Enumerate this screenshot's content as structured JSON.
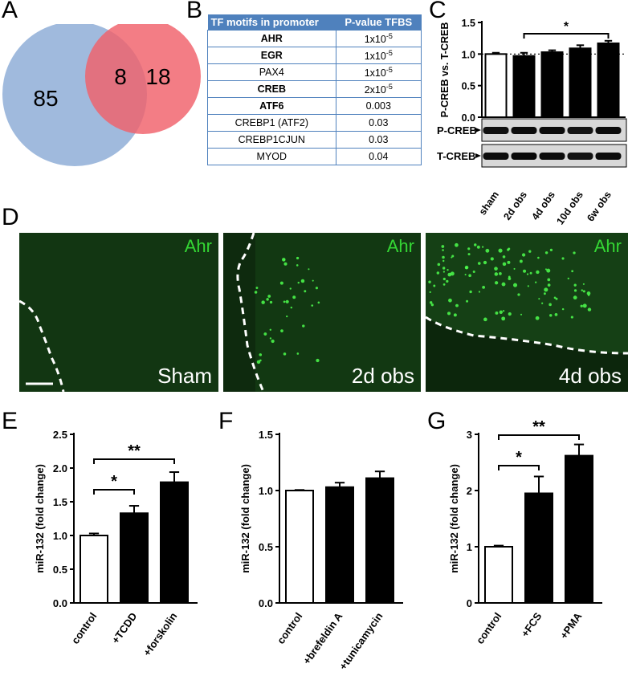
{
  "panels": {
    "A": "A",
    "B": "B",
    "C": "C",
    "D": "D",
    "E": "E",
    "F": "F",
    "G": "G"
  },
  "venn": {
    "left_only": "85",
    "overlap": "8",
    "right_only": "18",
    "colors": {
      "left": "#9bb6db",
      "right": "#f0606a"
    }
  },
  "tf_table": {
    "headers": [
      "TF motifs in promoter",
      "P-value TFBS"
    ],
    "rows": [
      {
        "motif": "AHR",
        "p": "1x10",
        "exp": "-5",
        "bold": true
      },
      {
        "motif": "EGR",
        "p": "1x10",
        "exp": "-5",
        "bold": true
      },
      {
        "motif": "PAX4",
        "p": "1x10",
        "exp": "-5",
        "bold": false
      },
      {
        "motif": "CREB",
        "p": "2x10",
        "exp": "-5",
        "bold": true
      },
      {
        "motif": "ATF6",
        "p": "0.003",
        "exp": "",
        "bold": true
      },
      {
        "motif": "CREBP1 (ATF2)",
        "p": "0.03",
        "exp": "",
        "bold": false
      },
      {
        "motif": "CREBP1CJUN",
        "p": "0.03",
        "exp": "",
        "bold": false
      },
      {
        "motif": "MYOD",
        "p": "0.04",
        "exp": "",
        "bold": false
      }
    ]
  },
  "western": {
    "labels": [
      "P-CREB",
      "T-CREB"
    ]
  },
  "micrographs": [
    {
      "marker": "Ahr",
      "condition": "Sham"
    },
    {
      "marker": "Ahr",
      "condition": "2d obs"
    },
    {
      "marker": "Ahr",
      "condition": "4d obs"
    }
  ],
  "chart_data": [
    {
      "panel": "C",
      "type": "bar",
      "ylabel": "P-CREB vs. T-CREB",
      "categories": [
        "sham",
        "2d obs",
        "4d obs",
        "10d obs",
        "6w obs"
      ],
      "values": [
        1.0,
        0.97,
        1.03,
        1.09,
        1.17
      ],
      "errors": [
        0.02,
        0.05,
        0.03,
        0.05,
        0.04
      ],
      "fills": [
        "#ffffff",
        "#000000",
        "#000000",
        "#000000",
        "#000000"
      ],
      "ylim": [
        0,
        1.5
      ],
      "yticks": [
        "0.0",
        "0.5",
        "1.0",
        "1.5"
      ],
      "reference_line": 1.0,
      "significance": [
        {
          "from": 1,
          "to": 4,
          "label": "*"
        }
      ]
    },
    {
      "panel": "E",
      "type": "bar",
      "ylabel": "miR-132 (fold change)",
      "categories": [
        "control",
        "+TCDD",
        "+forskolin"
      ],
      "values": [
        1.0,
        1.33,
        1.79
      ],
      "errors": [
        0.03,
        0.11,
        0.15
      ],
      "fills": [
        "#ffffff",
        "#000000",
        "#000000"
      ],
      "ylim": [
        0,
        2.5
      ],
      "yticks": [
        "0.0",
        "0.5",
        "1.0",
        "1.5",
        "2.0",
        "2.5"
      ],
      "significance": [
        {
          "from": 0,
          "to": 1,
          "label": "*"
        },
        {
          "from": 0,
          "to": 2,
          "label": "**"
        }
      ]
    },
    {
      "panel": "F",
      "type": "bar",
      "ylabel": "miR-132 (fold change)",
      "categories": [
        "control",
        "+brefeldin A",
        "+tunicamycin"
      ],
      "values": [
        1.0,
        1.03,
        1.11
      ],
      "errors": [
        0.005,
        0.04,
        0.06
      ],
      "fills": [
        "#ffffff",
        "#000000",
        "#000000"
      ],
      "ylim": [
        0,
        1.5
      ],
      "yticks": [
        "0.0",
        "0.5",
        "1.0",
        "1.5"
      ],
      "significance": []
    },
    {
      "panel": "G",
      "type": "bar",
      "ylabel": "miR-132 (fold change)",
      "categories": [
        "control",
        "+FCS",
        "+PMA"
      ],
      "values": [
        1.0,
        1.95,
        2.62
      ],
      "errors": [
        0.02,
        0.3,
        0.2
      ],
      "fills": [
        "#ffffff",
        "#000000",
        "#000000"
      ],
      "ylim": [
        0,
        3
      ],
      "yticks": [
        "0",
        "1",
        "2",
        "3"
      ],
      "significance": [
        {
          "from": 0,
          "to": 1,
          "label": "*"
        },
        {
          "from": 0,
          "to": 2,
          "label": "**"
        }
      ]
    }
  ]
}
